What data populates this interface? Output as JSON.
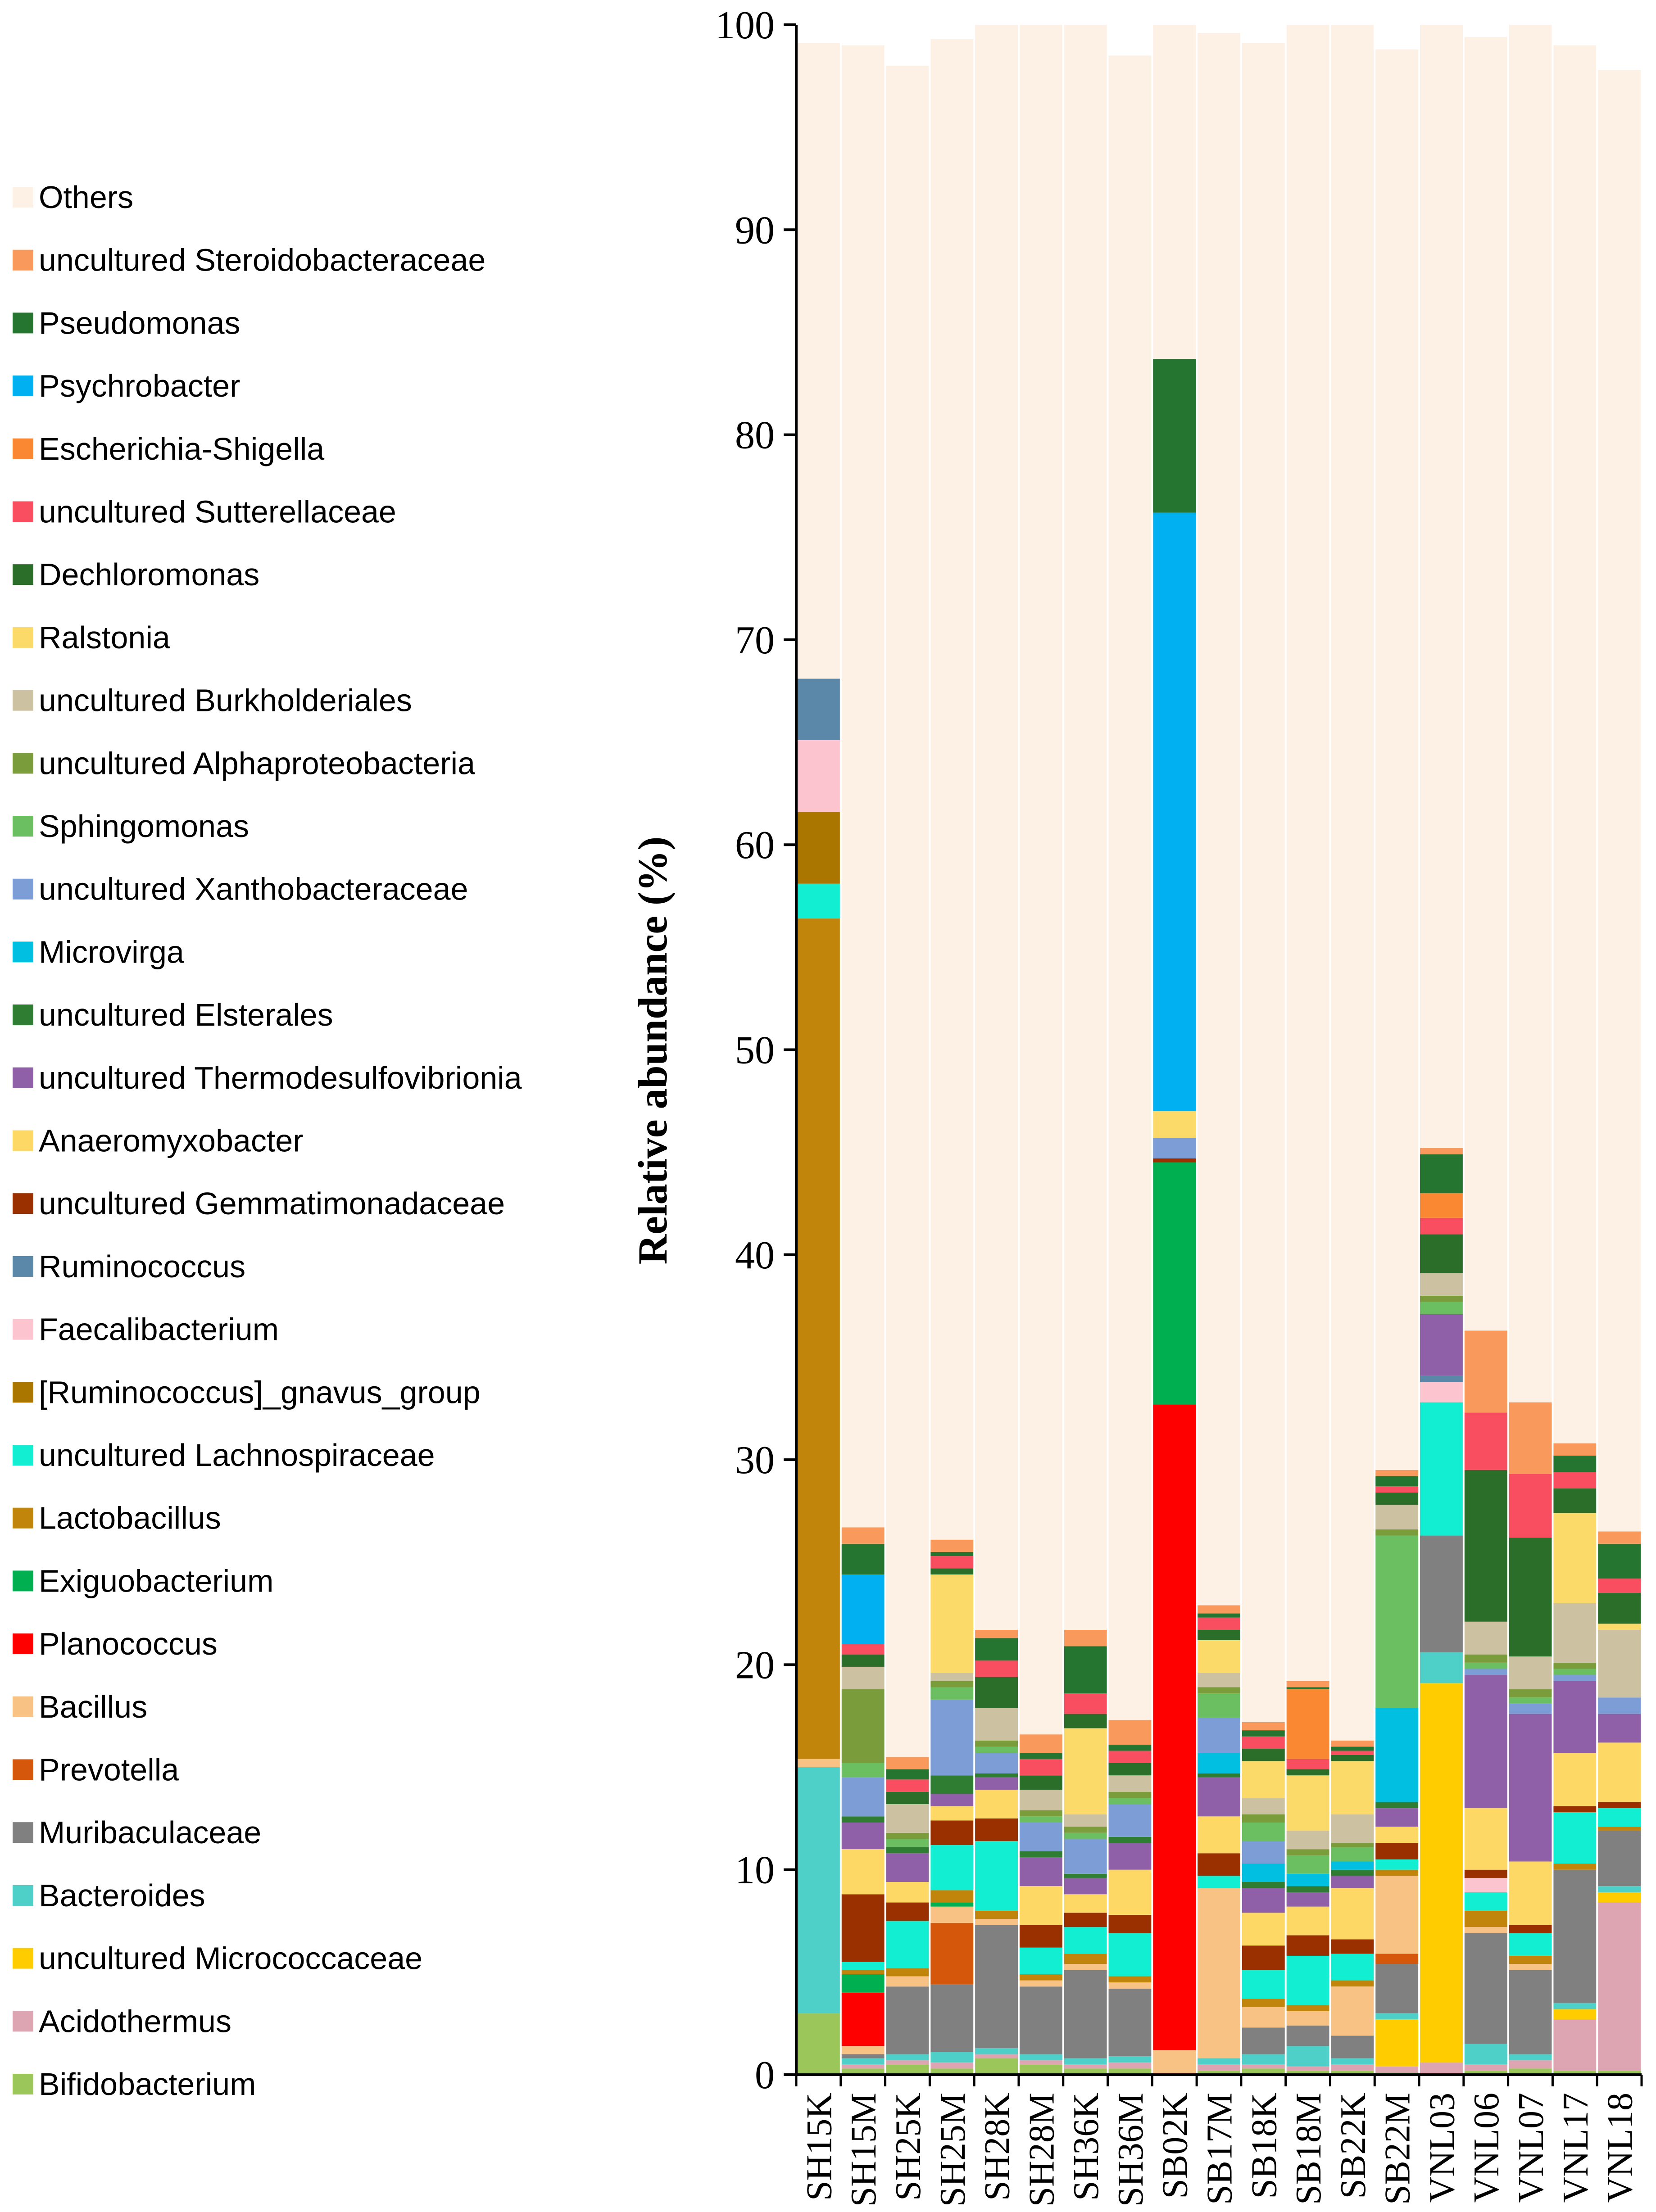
{
  "chart_data": {
    "type": "bar",
    "stacked": true,
    "title": "",
    "xlabel": "",
    "ylabel": "Relative abundance (%)",
    "ylim": [
      0,
      100
    ],
    "yticks": [
      0,
      10,
      20,
      30,
      40,
      50,
      60,
      70,
      80,
      90,
      100
    ],
    "categories": [
      "SH15K",
      "SH15M",
      "SH25K",
      "SH25M",
      "SH28K",
      "SH28M",
      "SH36K",
      "SH36M",
      "SB02K",
      "SB17M",
      "SB18K",
      "SB18M",
      "SB22K",
      "SB22M",
      "VNL03",
      "VNL06",
      "VNL07",
      "VNL17",
      "VNL18"
    ],
    "series": [
      {
        "name": "Bifidobacterium",
        "color": "#9BC75A",
        "values": [
          3.0,
          0.3,
          0.5,
          0.3,
          0.8,
          0.5,
          0.3,
          0.3,
          0,
          0.2,
          0.3,
          0.2,
          0.2,
          0.1,
          0,
          0.2,
          0.3,
          0.2,
          0.2
        ]
      },
      {
        "name": "Acidothermus",
        "color": "#DDA4B2",
        "values": [
          0,
          0.2,
          0.2,
          0.3,
          0.2,
          0.2,
          0.2,
          0.3,
          0,
          0.3,
          0.2,
          0.2,
          0.3,
          0.3,
          0.6,
          0.3,
          0.4,
          2.5,
          8.2
        ]
      },
      {
        "name": "uncultured Micrococcaceae",
        "color": "#FFCC00",
        "values": [
          0,
          0,
          0,
          0,
          0,
          0,
          0,
          0,
          0,
          0,
          0,
          0,
          0,
          2.3,
          18.5,
          0,
          0,
          0.5,
          0.5
        ]
      },
      {
        "name": "Bacteroides",
        "color": "#4ECFC8",
        "values": [
          12.0,
          0.3,
          0.3,
          0.5,
          0.3,
          0.3,
          0.3,
          0.3,
          0,
          0.3,
          0.5,
          1.0,
          0.3,
          0.3,
          1.5,
          1.0,
          0.3,
          0.3,
          0.3
        ]
      },
      {
        "name": "Muribaculaceae",
        "color": "#808080",
        "values": [
          0,
          0.2,
          3.3,
          3.3,
          6.0,
          3.3,
          4.3,
          3.3,
          0,
          0,
          1.3,
          1.0,
          1.1,
          2.4,
          5.7,
          5.4,
          4.1,
          6.5,
          2.7
        ]
      },
      {
        "name": "Prevotella",
        "color": "#D4570C",
        "values": [
          0,
          0,
          0,
          3.0,
          0,
          0,
          0,
          0,
          0,
          0,
          0,
          0,
          0,
          0.5,
          0,
          0,
          0,
          0,
          0
        ]
      },
      {
        "name": "Bacillus",
        "color": "#F8C285",
        "values": [
          0.4,
          0.4,
          0.5,
          0.8,
          0.3,
          0.3,
          0.3,
          0.3,
          1.2,
          8.3,
          1.0,
          0.7,
          2.4,
          3.8,
          0,
          0.3,
          0.3,
          0,
          0
        ]
      },
      {
        "name": "Planococcus",
        "color": "#FF0000",
        "values": [
          0,
          2.6,
          0,
          0,
          0,
          0,
          0,
          0,
          31.5,
          0,
          0,
          0,
          0,
          0,
          0,
          0,
          0,
          0,
          0
        ]
      },
      {
        "name": "Exiguobacterium",
        "color": "#00B050",
        "values": [
          0,
          0.9,
          0,
          0.2,
          0,
          0,
          0,
          0,
          11.8,
          0,
          0,
          0,
          0,
          0,
          0,
          0,
          0,
          0,
          0
        ]
      },
      {
        "name": "Lactobacillus",
        "color": "#C1850B",
        "values": [
          41.0,
          0.2,
          0.4,
          0.6,
          0.4,
          0.3,
          0.5,
          0.3,
          0,
          0,
          0.4,
          0.3,
          0.3,
          0.3,
          0,
          0.8,
          0.4,
          0.3,
          0.2
        ]
      },
      {
        "name": "uncultured Lachnospiraceae",
        "color": "#12EED2",
        "values": [
          1.7,
          0.4,
          2.3,
          2.2,
          3.4,
          1.3,
          1.3,
          2.1,
          0,
          0.6,
          1.4,
          2.4,
          1.3,
          0.5,
          6.5,
          0.9,
          1.1,
          2.5,
          0.9
        ]
      },
      {
        "name": "[Ruminococcus]_gnavus_group",
        "color": "#AA7600",
        "values": [
          3.5,
          0,
          0,
          0,
          0,
          0,
          0,
          0,
          0,
          0,
          0,
          0,
          0,
          0,
          0,
          0,
          0,
          0,
          0
        ]
      },
      {
        "name": "Faecalibacterium",
        "color": "#FCC4CE",
        "values": [
          3.5,
          0,
          0,
          0,
          0,
          0,
          0,
          0,
          0,
          0,
          0,
          0,
          0,
          0,
          1.0,
          0.7,
          0,
          0,
          0
        ]
      },
      {
        "name": "Ruminococcus",
        "color": "#5B87A8",
        "values": [
          3.0,
          0,
          0,
          0,
          0,
          0,
          0,
          0,
          0,
          0,
          0,
          0,
          0,
          0,
          0.3,
          0,
          0,
          0,
          0
        ]
      },
      {
        "name": "uncultured Gemmatimonadaceae",
        "color": "#9A3000",
        "values": [
          0,
          3.3,
          0.9,
          1.2,
          1.1,
          1.1,
          0.7,
          0.9,
          0.2,
          1.1,
          1.2,
          1.0,
          0.7,
          0.8,
          0,
          0.4,
          0.4,
          0.3,
          0.3
        ]
      },
      {
        "name": "Anaeromyxobacter",
        "color": "#FDD865",
        "values": [
          0,
          2.2,
          1.0,
          0.7,
          1.4,
          1.9,
          0.9,
          2.2,
          0,
          1.8,
          1.6,
          1.4,
          2.5,
          0.8,
          0,
          3.0,
          3.1,
          2.6,
          2.9
        ]
      },
      {
        "name": "uncultured Thermodesulfovibrionia",
        "color": "#8F60A8",
        "values": [
          0,
          1.3,
          1.4,
          0.6,
          0.6,
          1.4,
          0.8,
          1.3,
          0,
          1.9,
          1.2,
          0.7,
          0.6,
          0.9,
          3.0,
          6.5,
          7.2,
          3.5,
          1.4
        ]
      },
      {
        "name": "uncultured Elsterales",
        "color": "#2E7D32",
        "values": [
          0,
          0.3,
          0.3,
          0.9,
          0.2,
          0.3,
          0.2,
          0.3,
          0,
          0.2,
          0.3,
          0.3,
          0.3,
          0.3,
          0,
          0,
          0,
          0,
          0
        ]
      },
      {
        "name": "Microvirga",
        "color": "#00BFE0",
        "values": [
          0,
          0,
          0,
          0,
          0,
          0,
          0,
          0,
          0,
          1.0,
          0.9,
          0.6,
          0.4,
          4.6,
          0,
          0,
          0,
          0,
          0
        ]
      },
      {
        "name": "uncultured Xanthobacteraceae",
        "color": "#7C9DD6",
        "values": [
          0,
          1.9,
          0,
          3.7,
          1.0,
          1.4,
          1.7,
          1.6,
          1.0,
          1.7,
          1.1,
          0,
          0,
          0,
          0,
          0.3,
          0.5,
          0.3,
          0.8
        ]
      },
      {
        "name": "Sphingomonas",
        "color": "#6CBF61",
        "values": [
          0,
          0.7,
          0.4,
          0.6,
          0.3,
          0.3,
          0.3,
          0.3,
          0,
          1.2,
          0.9,
          0.9,
          0.7,
          8.4,
          0.6,
          0.3,
          0.3,
          0.3,
          0
        ]
      },
      {
        "name": "uncultured Alphaproteobacteria",
        "color": "#7A9C3A",
        "values": [
          0,
          3.6,
          0.3,
          0.3,
          0.3,
          0.3,
          0.3,
          0.3,
          0,
          0.3,
          0.4,
          0.3,
          0.2,
          0.3,
          0.3,
          0.4,
          0.4,
          0.3,
          0
        ]
      },
      {
        "name": "uncultured Burkholderiales",
        "color": "#CCC1A0",
        "values": [
          0,
          1.1,
          1.4,
          0.4,
          1.6,
          1.0,
          0.6,
          0.8,
          0,
          0.7,
          0.8,
          0.9,
          1.4,
          1.2,
          1.1,
          1.6,
          1.6,
          2.9,
          3.3
        ]
      },
      {
        "name": "Ralstonia",
        "color": "#FCDA6A",
        "values": [
          0,
          0,
          0,
          4.8,
          0,
          0,
          4.2,
          0,
          1.3,
          1.6,
          1.8,
          2.7,
          2.6,
          0,
          0,
          0,
          0,
          4.4,
          0.3
        ]
      },
      {
        "name": "Dechloromonas",
        "color": "#2B6E2A",
        "values": [
          0,
          0.6,
          0.6,
          0.3,
          1.5,
          0.7,
          0.7,
          0.6,
          0,
          0.5,
          0.6,
          0.3,
          0.3,
          0.6,
          1.9,
          7.4,
          5.8,
          1.2,
          1.5
        ]
      },
      {
        "name": "uncultured Sutterellaceae",
        "color": "#F94D60",
        "values": [
          0,
          0.5,
          0.6,
          0.6,
          0.8,
          0.8,
          1.0,
          0.6,
          0,
          0.6,
          0.6,
          0.5,
          0.2,
          0.3,
          0.8,
          2.8,
          3.1,
          0.8,
          0.7
        ]
      },
      {
        "name": "Escherichia-Shigella",
        "color": "#FA8832",
        "values": [
          0,
          0,
          0,
          0,
          0,
          0,
          0,
          0,
          0,
          0,
          0,
          3.4,
          0,
          0,
          1.2,
          0,
          0,
          0,
          0
        ]
      },
      {
        "name": "Psychrobacter",
        "color": "#00B0F0",
        "values": [
          0,
          3.4,
          0,
          0,
          0,
          0,
          0,
          0,
          29.2,
          0,
          0,
          0,
          0,
          0,
          0,
          0,
          0,
          0,
          0
        ]
      },
      {
        "name": "Pseudomonas",
        "color": "#25742F",
        "values": [
          0,
          1.5,
          0.5,
          0.2,
          1.1,
          0.3,
          2.3,
          0.3,
          7.5,
          0.2,
          0.3,
          0.1,
          0.2,
          0.5,
          1.9,
          0,
          0,
          0.8,
          1.7
        ]
      },
      {
        "name": "uncultured Steroidobacteraceae",
        "color": "#F99A5C",
        "values": [
          0,
          0.8,
          0.6,
          0.6,
          0.4,
          0.9,
          0.8,
          1.2,
          0,
          0.4,
          0.4,
          0.3,
          0.3,
          0.3,
          0.3,
          4.0,
          3.5,
          0.6,
          0.6
        ]
      },
      {
        "name": "Others",
        "color": "#FDF1E6",
        "values": [
          31.0,
          72.3,
          82.5,
          73.2,
          78.3,
          83.4,
          80.0,
          81.2,
          16.3,
          76.7,
          81.9,
          81.3,
          85.4,
          69.3,
          56.0,
          63.1,
          67.3,
          68.2,
          71.3
        ]
      }
    ],
    "legend_position": "left",
    "grid": false
  }
}
